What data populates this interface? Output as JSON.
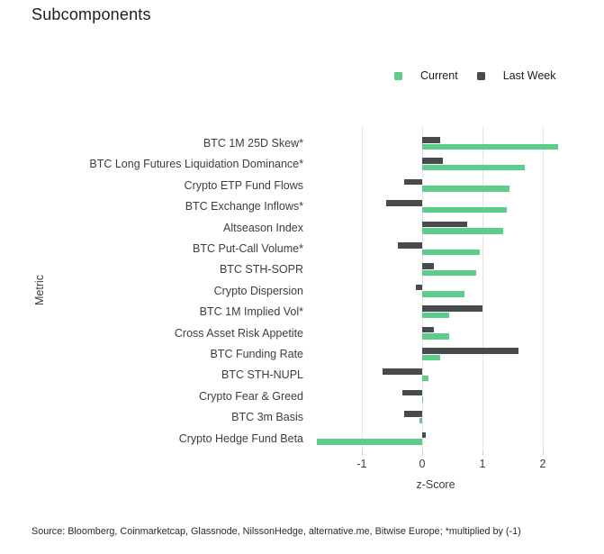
{
  "title": "Subcomponents",
  "footer": {
    "source": "Source: Bloomberg, Coinmarketcap, Glassnode, NilssonHedge, alternative.me, Bitwise Europe; *multiplied by (-1)"
  },
  "colors": {
    "current_green": "#5ECD8C",
    "last_week_gray": "#474B4E",
    "gridline": "#e6e6e6",
    "text": "#3d3d3d"
  },
  "chart_data": {
    "type": "bar",
    "orientation": "horizontal",
    "title": "Subcomponents",
    "xlabel": "z-Score",
    "ylabel": "Metric",
    "x_ticks": [
      -1,
      0,
      1,
      2
    ],
    "xlim": [
      -1.85,
      2.3
    ],
    "grid": "vertical",
    "legend_position": "top-right",
    "categories": [
      "BTC 1M 25D Skew*",
      "BTC Long Futures Liquidation Dominance*",
      "Crypto ETP Fund Flows",
      "BTC Exchange Inflows*",
      "Altseason Index",
      "BTC Put-Call Volume*",
      "BTC STH-SOPR",
      "Crypto Dispersion",
      "BTC 1M Implied Vol*",
      "Cross Asset Risk Appetite",
      "BTC Funding Rate",
      "BTC STH-NUPL",
      "Crypto Fear & Greed",
      "BTC 3m Basis",
      "Crypto Hedge Fund Beta"
    ],
    "series": [
      {
        "name": "Current",
        "color": "#5ECD8C",
        "values": [
          2.25,
          1.7,
          1.45,
          1.4,
          1.35,
          0.95,
          0.9,
          0.7,
          0.45,
          0.45,
          0.3,
          0.1,
          0.02,
          -0.05,
          -1.75
        ]
      },
      {
        "name": "Last Week",
        "color": "#474B4E",
        "values": [
          0.3,
          0.35,
          -0.3,
          -0.6,
          0.75,
          -0.4,
          0.2,
          -0.1,
          1.0,
          0.2,
          1.6,
          -0.65,
          -0.33,
          -0.3,
          0.06
        ]
      }
    ],
    "row_render_order": "Last Week bar above Current bar in each category row"
  }
}
